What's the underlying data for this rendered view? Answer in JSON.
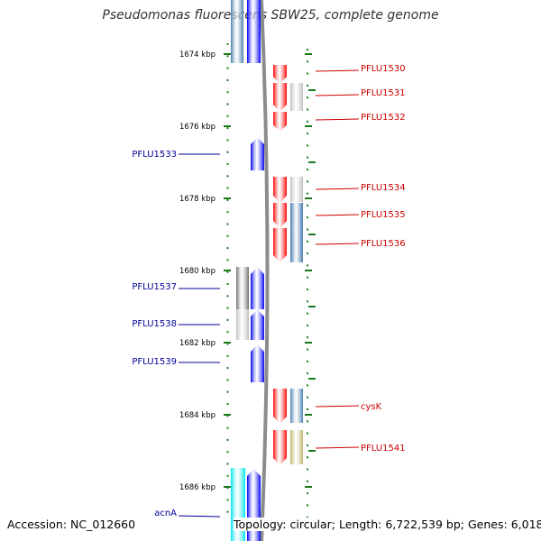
{
  "title": "Pseudomonas fluorescens SBW25, complete genome",
  "footer": {
    "accession_label": "Accession:",
    "accession": "NC_012660",
    "topology_label": "Topology:",
    "topology": "circular;",
    "length_label": "Length:",
    "length": "6,722,539 bp;",
    "genes_label": "Genes:",
    "genes": "6,018"
  },
  "colors": {
    "forward_label": "#cc0000",
    "reverse_label": "#000099",
    "tick": "#1a7a1a",
    "backbone": "#8c8c8c",
    "cds_red": "#ff0000",
    "cds_blue": "#0000ee",
    "steel_blue": "#4a7fb0",
    "light_gray": "#bfbfbf",
    "dark_gray": "#707070",
    "olive": "#bdb46c",
    "cyan": "#00e5ee"
  },
  "position_axis": {
    "unit": "kbp",
    "labels": [
      "1674 kbp",
      "1676 kbp",
      "1678 kbp",
      "1680 kbp",
      "1682 kbp",
      "1684 kbp",
      "1686 kbp"
    ]
  },
  "features": {
    "forward": [
      {
        "name": "PFLU1530",
        "gene_color": "cds_red",
        "partner_color": null
      },
      {
        "name": "PFLU1531",
        "gene_color": "cds_red",
        "partner_color": "light_gray"
      },
      {
        "name": "PFLU1532",
        "gene_color": "cds_red",
        "partner_color": null
      },
      {
        "name": "PFLU1534",
        "gene_color": "cds_red",
        "partner_color": "light_gray"
      },
      {
        "name": "PFLU1535",
        "gene_color": "cds_red",
        "partner_color": "steel_blue"
      },
      {
        "name": "PFLU1536",
        "gene_color": "cds_red",
        "partner_color": "steel_blue"
      },
      {
        "name": "cysK",
        "gene_color": "cds_red",
        "partner_color": "steel_blue"
      },
      {
        "name": "PFLU1541",
        "gene_color": "cds_red",
        "partner_color": "olive"
      }
    ],
    "reverse": [
      {
        "name": "PFLU1533",
        "gene_color": "cds_blue",
        "partner_color": null
      },
      {
        "name": "PFLU1537",
        "gene_color": "cds_blue",
        "partner_color": "dark_gray"
      },
      {
        "name": "PFLU1538",
        "gene_color": "cds_blue",
        "partner_color": "light_gray"
      },
      {
        "name": "PFLU1539",
        "gene_color": "cds_blue",
        "partner_color": null
      },
      {
        "name": "acnA",
        "gene_color": "cds_blue",
        "partner_color": "cyan"
      }
    ]
  }
}
